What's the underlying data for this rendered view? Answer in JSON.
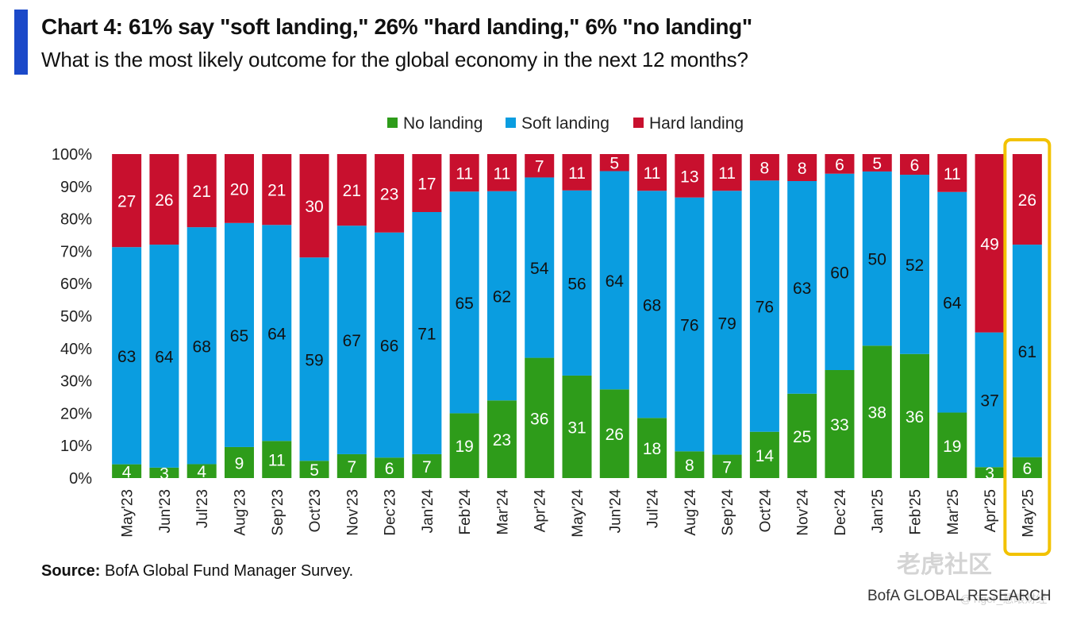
{
  "title": "Chart 4: 61% say \"soft landing,\" 26% \"hard landing,\" 6% \"no landing\"",
  "subtitle": "What is the most likely outcome for the global economy in the next 12 months?",
  "source_label": "Source:",
  "source_text": " BofA Global Fund Manager Survey.",
  "footer_brand": "BofA GLOBAL RESEARCH",
  "watermark": "老虎社区",
  "watermark_sub": "@Tiger_慧眼财经",
  "colors": {
    "no_landing": "#2e9c1a",
    "soft_landing": "#0a9de0",
    "hard_landing": "#c8102e",
    "highlight": "#f2c200",
    "accent": "#1b49c9"
  },
  "chart_data": {
    "type": "bar",
    "stacked": true,
    "percent_scale": true,
    "categories": [
      "May'23",
      "Jun'23",
      "Jul'23",
      "Aug'23",
      "Sep'23",
      "Oct'23",
      "Nov'23",
      "Dec'23",
      "Jan'24",
      "Feb'24",
      "Mar'24",
      "Apr'24",
      "May'24",
      "Jun'24",
      "Jul'24",
      "Aug'24",
      "Sep'24",
      "Oct'24",
      "Nov'24",
      "Dec'24",
      "Jan'25",
      "Feb'25",
      "Mar'25",
      "Apr'25",
      "May'25"
    ],
    "series": [
      {
        "name": "No landing",
        "color": "#2e9c1a",
        "values": [
          4,
          3,
          4,
          9,
          11,
          5,
          7,
          6,
          7,
          19,
          23,
          36,
          31,
          26,
          18,
          8,
          7,
          14,
          25,
          33,
          38,
          36,
          19,
          3,
          6
        ]
      },
      {
        "name": "Soft landing",
        "color": "#0a9de0",
        "values": [
          63,
          64,
          68,
          65,
          64,
          59,
          67,
          66,
          71,
          65,
          62,
          54,
          56,
          64,
          68,
          76,
          79,
          76,
          63,
          60,
          50,
          52,
          64,
          37,
          61
        ]
      },
      {
        "name": "Hard landing",
        "color": "#c8102e",
        "values": [
          27,
          26,
          21,
          20,
          21,
          30,
          21,
          23,
          17,
          11,
          11,
          7,
          11,
          5,
          11,
          13,
          11,
          8,
          8,
          6,
          5,
          6,
          11,
          49,
          26
        ]
      }
    ],
    "y_ticks": [
      "0%",
      "10%",
      "20%",
      "30%",
      "40%",
      "50%",
      "60%",
      "70%",
      "80%",
      "90%",
      "100%"
    ],
    "ylim": [
      0,
      100
    ],
    "legend_position": "top-center",
    "highlight_category": "May'25"
  }
}
